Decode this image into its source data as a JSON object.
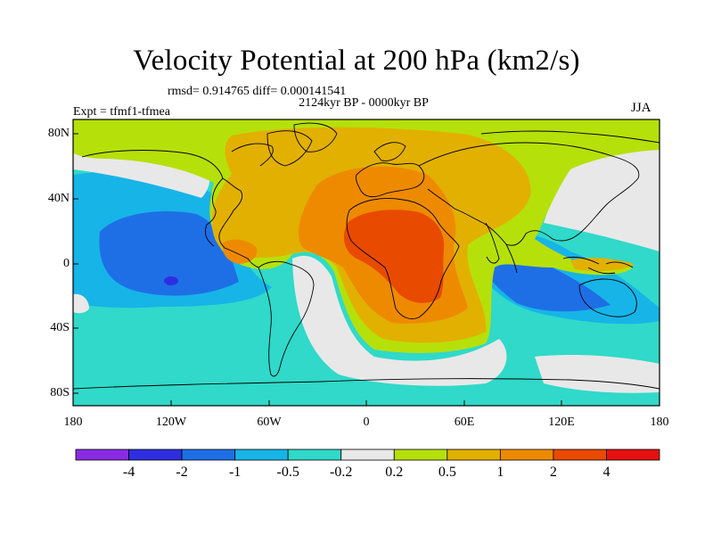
{
  "header": {
    "title": "Velocity Potential at 200 hPa (km2/s)",
    "stats": "rmsd= 0.914765 diff= 0.000141541",
    "period": "2124kyr BP - 0000kyr BP",
    "experiment": "Expt = tfmf1-tfmea",
    "season": "JJA"
  },
  "axes": {
    "lat_ticks": [
      "80N",
      "40N",
      "0",
      "40S",
      "80S"
    ],
    "lon_ticks": [
      "180",
      "120W",
      "60W",
      "0",
      "60E",
      "120E",
      "180"
    ]
  },
  "colorbar": {
    "labels": [
      "-4",
      "-2",
      "-1",
      "-0.5",
      "-0.2",
      "0.2",
      "0.5",
      "1",
      "2",
      "4"
    ],
    "colors": [
      "#8a2be2",
      "#2e2ee0",
      "#1e6fe6",
      "#17b4e8",
      "#30d9c9",
      "#e8e8e8",
      "#b6e00a",
      "#e2b000",
      "#ee8a00",
      "#e84a00",
      "#e61010"
    ]
  },
  "colors": {
    "n5": "#2e2ee0",
    "n4": "#1e6fe6",
    "n3": "#17b4e8",
    "n2": "#30d9c9",
    "zero": "#e8e8e8",
    "p1": "#b6e00a",
    "p2": "#e2b000",
    "p3": "#ee8a00",
    "p4": "#e84a00"
  }
}
